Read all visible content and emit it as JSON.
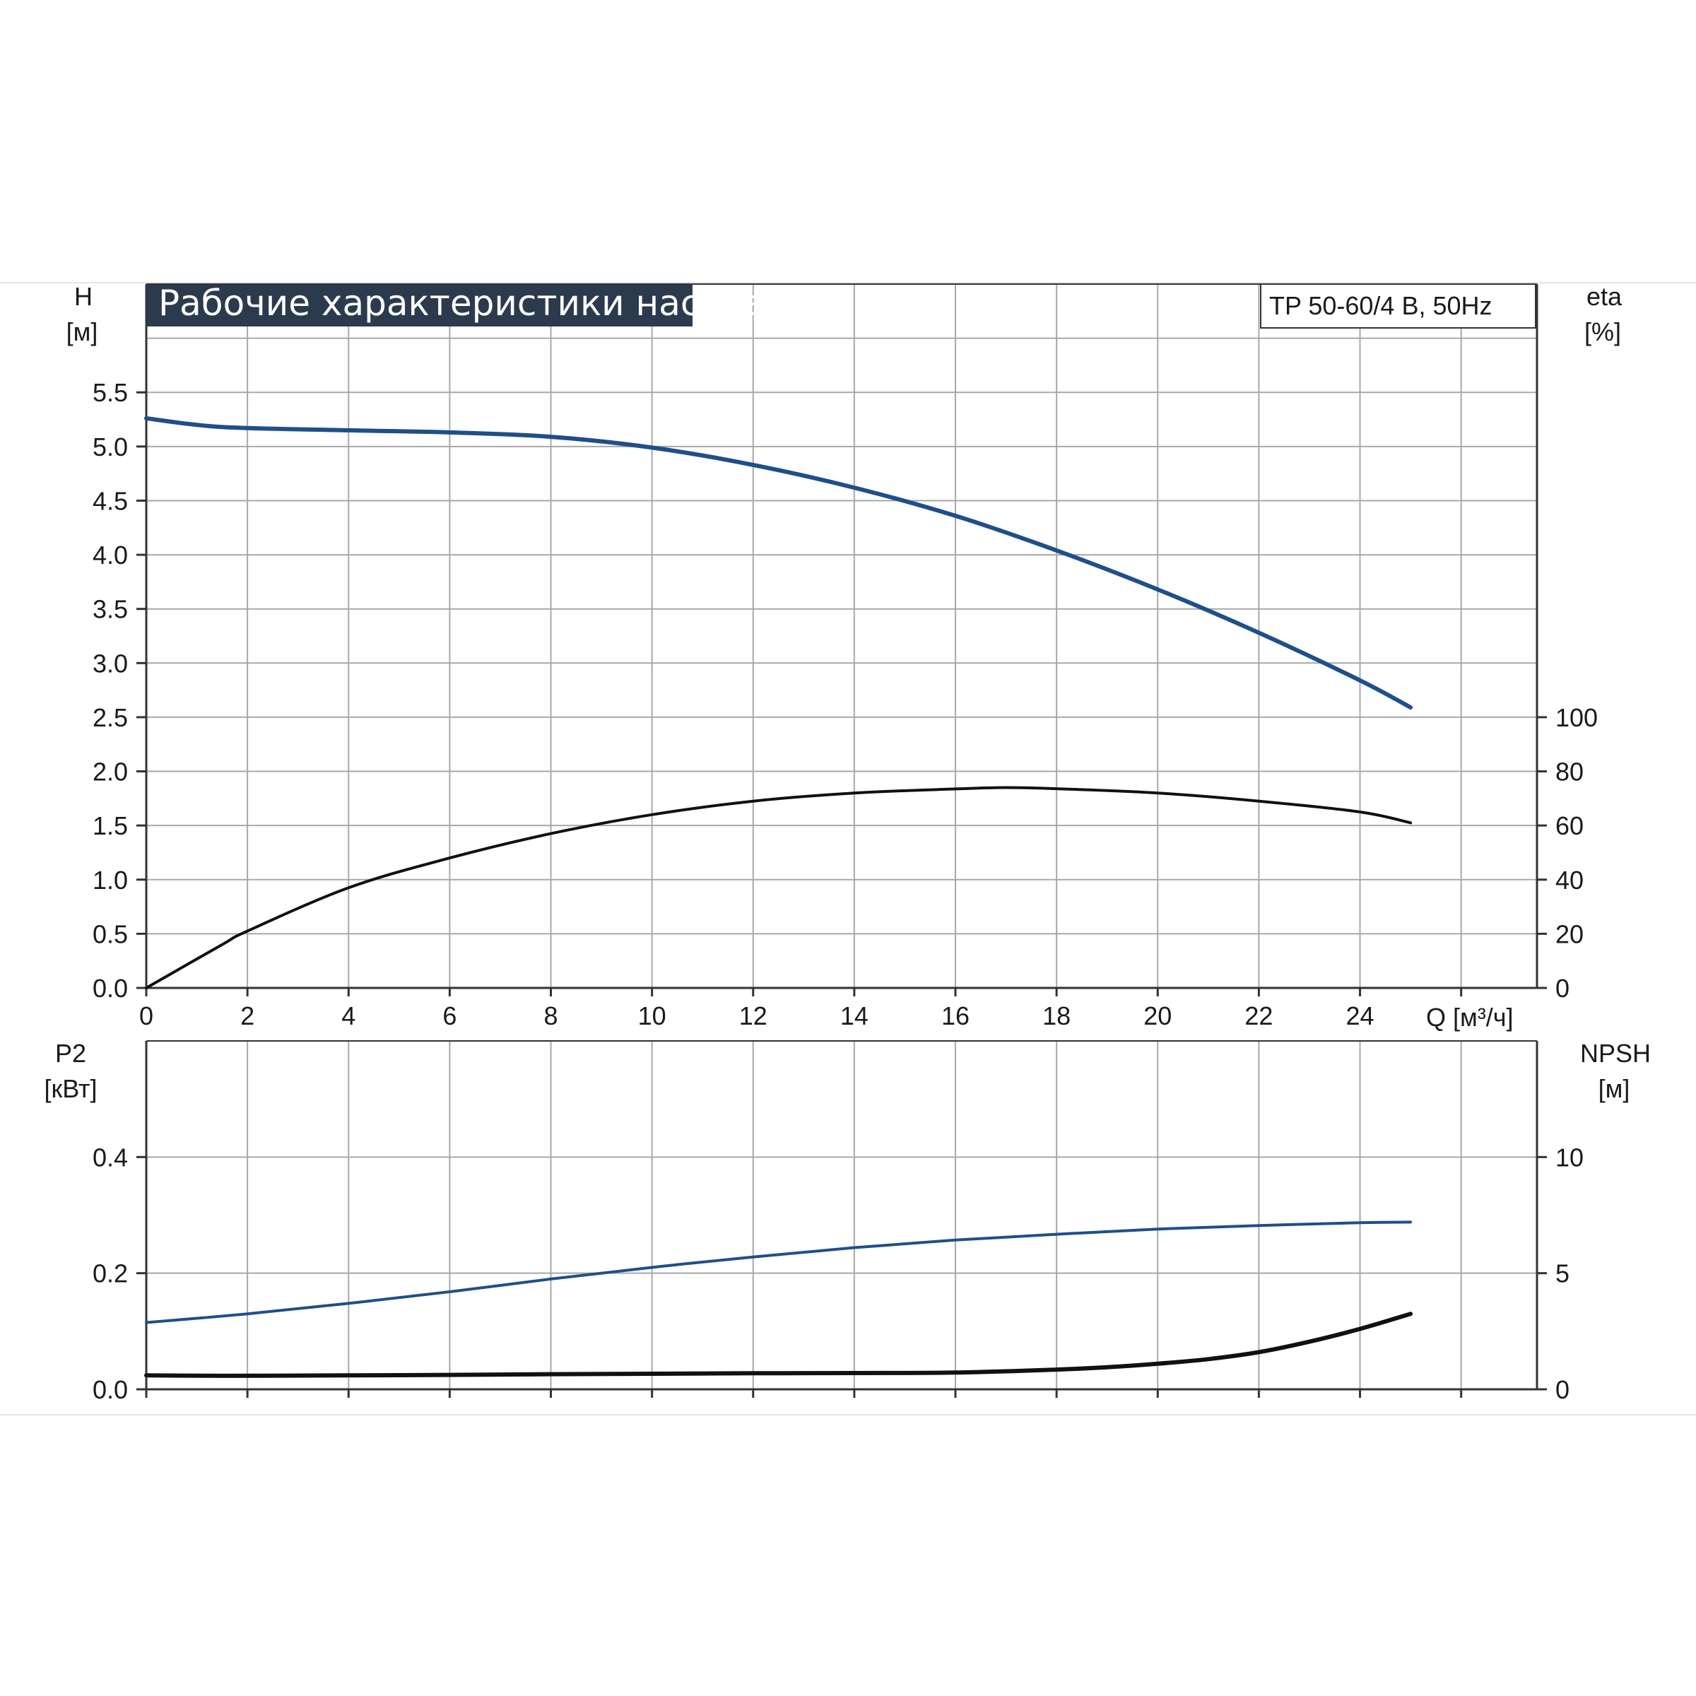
{
  "colors": {
    "blue_curve": "#1f4f8a",
    "black_curve": "#111111",
    "grid": "#a8a8a8",
    "title_bg": "#2c3a4d",
    "axis": "#333333"
  },
  "header": {
    "title": "Рабочие характеристики насоса",
    "model": "TP 50-60/4 B, 50Hz"
  },
  "chart_data": [
    {
      "type": "line",
      "panel": "top",
      "left_axis": {
        "label": "H",
        "unit": "[м]",
        "range": [
          0,
          6.5
        ],
        "ticks": [
          0.0,
          0.5,
          1.0,
          1.5,
          2.0,
          2.5,
          3.0,
          3.5,
          4.0,
          4.5,
          5.0,
          5.5
        ],
        "tick_labels": [
          "0.0",
          "0.5",
          "1.0",
          "1.5",
          "2.0",
          "2.5",
          "3.0",
          "3.5",
          "4.0",
          "4.5",
          "5.0",
          "5.5"
        ]
      },
      "right_axis": {
        "label": "eta",
        "unit": "[%]",
        "range": [
          0,
          260
        ],
        "ticks": [
          0,
          20,
          40,
          60,
          80,
          100
        ],
        "tick_labels": [
          "0",
          "20",
          "40",
          "60",
          "80",
          "100"
        ]
      },
      "x_axis": {
        "label": "Q [м³/ч]",
        "range": [
          0,
          27.5
        ],
        "ticks": [
          0,
          2,
          4,
          6,
          8,
          10,
          12,
          14,
          16,
          18,
          20,
          22,
          24
        ],
        "tick_labels": [
          "0",
          "2",
          "4",
          "6",
          "8",
          "10",
          "12",
          "14",
          "16",
          "18",
          "20",
          "22",
          "24"
        ]
      },
      "grid": true,
      "series": [
        {
          "axis": "left",
          "color": "#1f4f8a",
          "x": [
            0,
            1.5,
            4,
            6,
            8,
            10,
            12,
            14,
            16,
            18,
            20,
            22,
            24,
            25
          ],
          "y": [
            5.26,
            5.18,
            5.15,
            5.13,
            5.09,
            4.99,
            4.83,
            4.62,
            4.36,
            4.04,
            3.68,
            3.28,
            2.84,
            2.59
          ]
        },
        {
          "axis": "right",
          "color": "#111111",
          "x": [
            0,
            1.5,
            2,
            4,
            6,
            8,
            10,
            12,
            14,
            16,
            17,
            18,
            20,
            22,
            24,
            25
          ],
          "y": [
            0,
            16,
            21,
            37,
            48,
            57,
            64,
            69,
            72,
            73.5,
            74,
            73.6,
            72,
            69,
            65,
            61
          ]
        }
      ]
    },
    {
      "type": "line",
      "panel": "bottom",
      "left_axis": {
        "label": "P2",
        "unit": "[кВт]",
        "range": [
          0,
          0.6
        ],
        "ticks": [
          0.0,
          0.2,
          0.4
        ],
        "tick_labels": [
          "0.0",
          "0.2",
          "0.4"
        ]
      },
      "right_axis": {
        "label": "NPSH",
        "unit": "[м]",
        "range": [
          0,
          15
        ],
        "ticks": [
          0,
          5,
          10
        ],
        "tick_labels": [
          "0",
          "5",
          "10"
        ]
      },
      "x_axis": {
        "range": [
          0,
          27.5
        ],
        "ticks": [
          0,
          2,
          4,
          6,
          8,
          10,
          12,
          14,
          16,
          18,
          20,
          22,
          24
        ]
      },
      "grid": true,
      "series": [
        {
          "axis": "left",
          "color": "#1f4f8a",
          "x": [
            0,
            2,
            4,
            6,
            8,
            10,
            12,
            14,
            16,
            18,
            20,
            22,
            24,
            25
          ],
          "y": [
            0.115,
            0.13,
            0.148,
            0.168,
            0.19,
            0.21,
            0.228,
            0.244,
            0.257,
            0.267,
            0.276,
            0.282,
            0.287,
            0.288
          ]
        },
        {
          "axis": "right",
          "color": "#111111",
          "x": [
            0,
            1.5,
            4,
            6,
            8,
            10,
            12,
            14,
            16,
            18,
            19,
            20,
            21,
            22,
            23,
            24,
            25
          ],
          "y": [
            0.6,
            0.58,
            0.6,
            0.62,
            0.65,
            0.67,
            0.69,
            0.7,
            0.72,
            0.85,
            0.95,
            1.1,
            1.3,
            1.6,
            2.05,
            2.6,
            3.25
          ]
        }
      ]
    }
  ]
}
